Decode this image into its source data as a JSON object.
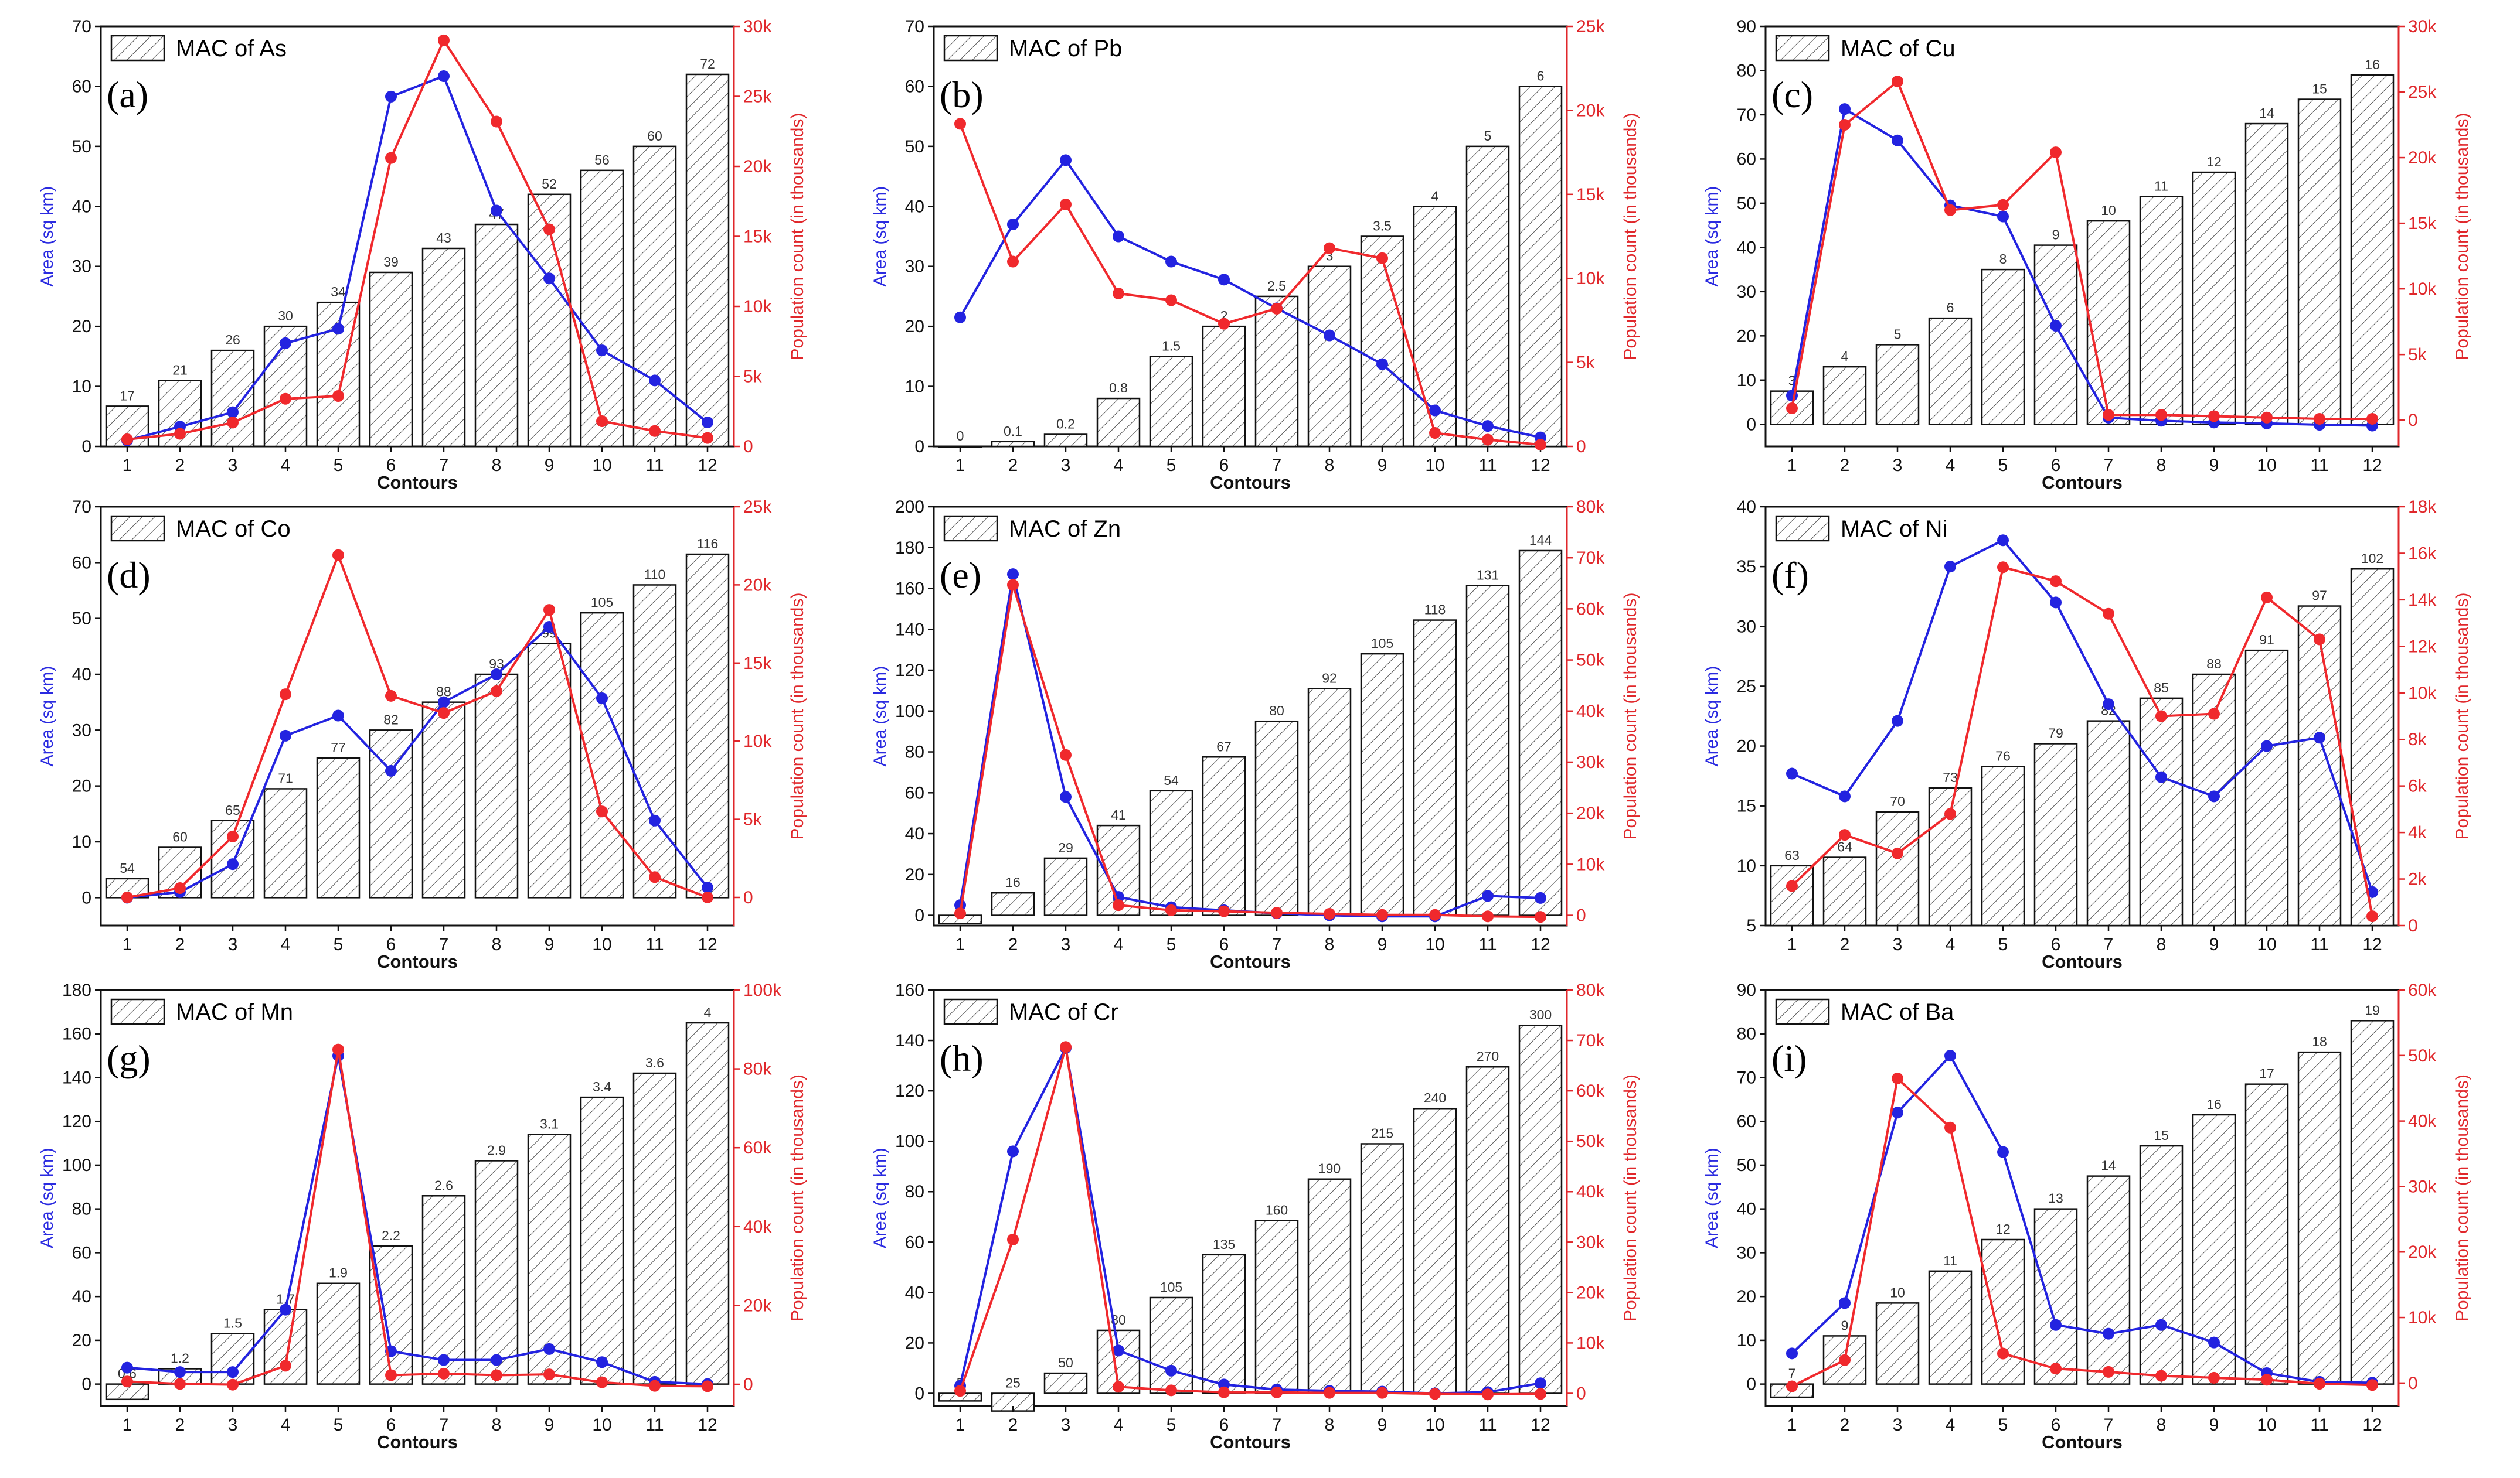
{
  "chart_data": [
    {
      "type": "bar+line",
      "panel_label": "(a)",
      "legend": "MAC of As",
      "xlabel": "Contours",
      "ylabel_left": "Area (sq km)",
      "ylabel_right": "Population count (in thousands)",
      "categories": [
        "1",
        "2",
        "3",
        "4",
        "5",
        "6",
        "7",
        "8",
        "9",
        "10",
        "11",
        "12"
      ],
      "left_axis": {
        "min": 0,
        "max": 70,
        "ticks": [
          "0",
          "10",
          "20",
          "30",
          "40",
          "50",
          "60",
          "70"
        ]
      },
      "right_axis": {
        "min": 0,
        "max": 30,
        "ticks": [
          "0",
          "5k",
          "10k",
          "15k",
          "20k",
          "25k",
          "30k"
        ]
      },
      "bar_values": [
        6.7,
        11,
        16,
        20,
        24,
        29,
        33,
        37,
        42,
        46,
        50,
        62
      ],
      "bar_labels": [
        "17",
        "21",
        "26",
        "30",
        "34",
        "39",
        "43",
        "47",
        "52",
        "56",
        "60",
        "72"
      ],
      "series": [
        {
          "name": "Area",
          "color": "#2323e0",
          "axis": "left",
          "values": [
            1,
            3.3,
            5.7,
            17.2,
            19.6,
            58.3,
            61.7,
            39.3,
            28,
            16,
            11,
            4
          ]
        },
        {
          "name": "Population",
          "color": "#f0292d",
          "axis": "right",
          "values": [
            0.5,
            0.9,
            1.7,
            3.4,
            3.6,
            20.6,
            29,
            23.2,
            15.5,
            1.8,
            1.1,
            0.6
          ]
        }
      ]
    },
    {
      "type": "bar+line",
      "panel_label": "(b)",
      "legend": "MAC of Pb",
      "xlabel": "Contours",
      "ylabel_left": "Area (sq km)",
      "ylabel_right": "Population count (in thousands)",
      "categories": [
        "1",
        "2",
        "3",
        "4",
        "5",
        "6",
        "7",
        "8",
        "9",
        "10",
        "11",
        "12"
      ],
      "left_axis": {
        "min": 0,
        "max": 70,
        "ticks": [
          "0",
          "10",
          "20",
          "30",
          "40",
          "50",
          "60",
          "70"
        ]
      },
      "right_axis": {
        "min": 0,
        "max": 25,
        "ticks": [
          "0",
          "5k",
          "10k",
          "15k",
          "20k",
          "25k"
        ]
      },
      "bar_values": [
        0,
        0.8,
        2,
        8,
        15,
        20,
        25,
        30,
        35,
        40,
        50,
        60
      ],
      "bar_labels": [
        "0",
        "0.1",
        "0.2",
        "0.8",
        "1.5",
        "2",
        "2.5",
        "3",
        "3.5",
        "4",
        "5",
        "6"
      ],
      "series": [
        {
          "name": "Area",
          "color": "#2323e0",
          "axis": "left",
          "values": [
            21.5,
            37,
            47.7,
            35,
            30.8,
            27.8,
            23,
            18.5,
            13.7,
            6,
            3.4,
            1.5
          ]
        },
        {
          "name": "Population",
          "color": "#f0292d",
          "axis": "right",
          "values": [
            19.2,
            11,
            14.4,
            9.1,
            8.7,
            7.3,
            8.2,
            11.8,
            11.2,
            0.8,
            0.4,
            0.1
          ]
        }
      ]
    },
    {
      "type": "bar+line",
      "panel_label": "(c)",
      "legend": "MAC of Cu",
      "xlabel": "Contours",
      "ylabel_left": "Area (sq km)",
      "ylabel_right": "Population count (in thousands)",
      "categories": [
        "1",
        "2",
        "3",
        "4",
        "5",
        "6",
        "7",
        "8",
        "9",
        "10",
        "11",
        "12"
      ],
      "left_axis": {
        "min": -5,
        "max": 90,
        "ticks": [
          "0",
          "10",
          "20",
          "30",
          "40",
          "50",
          "60",
          "70",
          "80",
          "90"
        ]
      },
      "right_axis": {
        "min": -2,
        "max": 30,
        "ticks": [
          "0",
          "5k",
          "10k",
          "15k",
          "20k",
          "25k",
          "30k"
        ]
      },
      "bar_values": [
        7.5,
        13,
        18,
        24,
        35,
        40.5,
        46,
        51.5,
        57,
        68,
        73.5,
        79
      ],
      "bar_labels": [
        "3",
        "4",
        "5",
        "6",
        "8",
        "9",
        "10",
        "11",
        "12",
        "14",
        "15",
        "16"
      ],
      "series": [
        {
          "name": "Area",
          "color": "#2323e0",
          "axis": "left",
          "values": [
            6.5,
            71.3,
            64.2,
            49.5,
            47,
            22.3,
            1.5,
            0.8,
            0.4,
            0.2,
            -0.1,
            -0.3
          ]
        },
        {
          "name": "Population",
          "color": "#f0292d",
          "axis": "right",
          "values": [
            0.9,
            22.5,
            25.8,
            16,
            16.4,
            20.4,
            0.4,
            0.4,
            0.3,
            0.2,
            0.1,
            0.1
          ]
        }
      ]
    },
    {
      "type": "bar+line",
      "panel_label": "(d)",
      "legend": "MAC of Co",
      "xlabel": "Contours",
      "ylabel_left": "Area (sq km)",
      "ylabel_right": "Population count (in thousands)",
      "categories": [
        "1",
        "2",
        "3",
        "4",
        "5",
        "6",
        "7",
        "8",
        "9",
        "10",
        "11",
        "12"
      ],
      "left_axis": {
        "min": -5,
        "max": 70,
        "ticks": [
          "0",
          "10",
          "20",
          "30",
          "40",
          "50",
          "60",
          "70"
        ]
      },
      "right_axis": {
        "min": -1.8,
        "max": 25,
        "ticks": [
          "0",
          "5k",
          "10k",
          "15k",
          "20k",
          "25k"
        ]
      },
      "bar_values": [
        3.4,
        9,
        13.8,
        19.5,
        25,
        30,
        35,
        40,
        45.5,
        51,
        56,
        61.5
      ],
      "bar_labels": [
        "54",
        "60",
        "65",
        "71",
        "77",
        "82",
        "88",
        "93",
        "99",
        "105",
        "110",
        "116"
      ],
      "series": [
        {
          "name": "Area",
          "color": "#2323e0",
          "axis": "left",
          "values": [
            0,
            1,
            6,
            29,
            32.6,
            22.7,
            35,
            40,
            48.5,
            35.7,
            13.8,
            1.8
          ]
        },
        {
          "name": "Population",
          "color": "#f0292d",
          "axis": "right",
          "values": [
            0,
            0.6,
            3.9,
            13,
            21.9,
            12.9,
            11.8,
            13.2,
            18.4,
            5.5,
            1.3,
            0
          ]
        }
      ]
    },
    {
      "type": "bar+line",
      "panel_label": "(e)",
      "legend": "MAC of Zn",
      "xlabel": "Contours",
      "ylabel_left": "Area (sq km)",
      "ylabel_right": "Population count (in thousands)",
      "categories": [
        "1",
        "2",
        "3",
        "4",
        "5",
        "6",
        "7",
        "8",
        "9",
        "10",
        "11",
        "12"
      ],
      "left_axis": {
        "min": -5,
        "max": 200,
        "ticks": [
          "0",
          "20",
          "40",
          "60",
          "80",
          "100",
          "120",
          "140",
          "160",
          "180",
          "200"
        ]
      },
      "right_axis": {
        "min": -2,
        "max": 80,
        "ticks": [
          "0",
          "10k",
          "20k",
          "30k",
          "40k",
          "50k",
          "60k",
          "70k",
          "80k"
        ]
      },
      "bar_values": [
        -4,
        11,
        28,
        44,
        61,
        77.5,
        95,
        111,
        128,
        144.5,
        161.5,
        178.5
      ],
      "bar_labels": [
        "3",
        "16",
        "29",
        "41",
        "54",
        "67",
        "80",
        "92",
        "105",
        "118",
        "131",
        "144"
      ],
      "series": [
        {
          "name": "Area",
          "color": "#2323e0",
          "axis": "left",
          "values": [
            5,
            167,
            58,
            9,
            4,
            2.5,
            1,
            0,
            -0.5,
            -0.5,
            9.5,
            8.5
          ]
        },
        {
          "name": "Population",
          "color": "#f0292d",
          "axis": "right",
          "values": [
            0.4,
            64.7,
            31.4,
            2,
            1,
            0.8,
            0.5,
            0.3,
            0.1,
            0.1,
            -0.2,
            -0.3
          ]
        }
      ]
    },
    {
      "type": "bar+line",
      "panel_label": "(f)",
      "legend": "MAC of Ni",
      "xlabel": "Contours",
      "ylabel_left": "Area (sq km)",
      "ylabel_right": "Population count (in thousands)",
      "categories": [
        "1",
        "2",
        "3",
        "4",
        "5",
        "6",
        "7",
        "8",
        "9",
        "10",
        "11",
        "12"
      ],
      "left_axis": {
        "min": 5,
        "max": 40,
        "ticks": [
          "5",
          "10",
          "15",
          "20",
          "25",
          "30",
          "35",
          "40"
        ]
      },
      "right_axis": {
        "min": 0,
        "max": 18,
        "ticks": [
          "0",
          "2k",
          "4k",
          "6k",
          "8k",
          "10k",
          "12k",
          "14k",
          "16k",
          "18k"
        ]
      },
      "bar_values": [
        10,
        10.7,
        14.5,
        16.5,
        18.3,
        20.2,
        22.1,
        24,
        26,
        28,
        31.7,
        34.8
      ],
      "bar_labels": [
        "63",
        "64",
        "70",
        "73",
        "76",
        "79",
        "82",
        "85",
        "88",
        "91",
        "97",
        "102"
      ],
      "series": [
        {
          "name": "Area",
          "color": "#2323e0",
          "axis": "left",
          "values": [
            17.7,
            15.8,
            22.1,
            35,
            37.2,
            32,
            23.5,
            17.4,
            15.8,
            20,
            20.7,
            7.8
          ]
        },
        {
          "name": "Population",
          "color": "#f0292d",
          "axis": "right",
          "values": [
            1.7,
            3.9,
            3.1,
            4.8,
            15.4,
            14.8,
            13.4,
            9,
            9.1,
            14.1,
            12.3,
            0.4
          ]
        }
      ]
    },
    {
      "type": "bar+line",
      "panel_label": "(g)",
      "legend": "MAC of Mn",
      "xlabel": "Contours",
      "ylabel_left": "Area (sq km)",
      "ylabel_right": "Population count (in thousands)",
      "categories": [
        "1",
        "2",
        "3",
        "4",
        "5",
        "6",
        "7",
        "8",
        "9",
        "10",
        "11",
        "12"
      ],
      "left_axis": {
        "min": -10,
        "max": 180,
        "ticks": [
          "0",
          "20",
          "40",
          "60",
          "80",
          "100",
          "120",
          "140",
          "160",
          "180"
        ]
      },
      "right_axis": {
        "min": -5.5,
        "max": 100,
        "ticks": [
          "0",
          "20k",
          "40k",
          "60k",
          "80k",
          "100k"
        ]
      },
      "bar_values": [
        -7,
        7,
        23,
        34,
        46,
        63,
        86,
        102,
        114,
        131,
        142,
        165
      ],
      "bar_labels": [
        "0.6",
        "1.2",
        "1.5",
        "1.7",
        "1.9",
        "2.2",
        "2.6",
        "2.9",
        "3.1",
        "3.4",
        "3.6",
        "4"
      ],
      "series": [
        {
          "name": "Area",
          "color": "#2323e0",
          "axis": "left",
          "values": [
            7.5,
            5.5,
            5.5,
            34,
            150,
            15,
            11,
            11,
            16,
            10,
            1,
            0
          ]
        },
        {
          "name": "Population",
          "color": "#f0292d",
          "axis": "right",
          "values": [
            0.7,
            0.1,
            -0.1,
            4.7,
            84.9,
            2.3,
            2.7,
            2.3,
            2.5,
            0.5,
            -0.4,
            -0.5
          ]
        }
      ]
    },
    {
      "type": "bar+line",
      "panel_label": "(h)",
      "legend": "MAC of Cr",
      "xlabel": "Contours",
      "ylabel_left": "Area (sq km)",
      "ylabel_right": "Population count (in thousands)",
      "categories": [
        "1",
        "2",
        "3",
        "4",
        "5",
        "6",
        "7",
        "8",
        "9",
        "10",
        "11",
        "12"
      ],
      "left_axis": {
        "min": -5,
        "max": 160,
        "ticks": [
          "0",
          "20",
          "40",
          "60",
          "80",
          "100",
          "120",
          "140",
          "160"
        ]
      },
      "right_axis": {
        "min": -2.5,
        "max": 80,
        "ticks": [
          "0",
          "10k",
          "20k",
          "30k",
          "40k",
          "50k",
          "60k",
          "70k",
          "80k"
        ]
      },
      "bar_values": [
        -3,
        -7,
        8,
        25,
        38,
        55,
        68.5,
        85,
        99,
        113,
        129.5,
        146
      ],
      "bar_labels": [
        "5",
        "25",
        "50",
        "80",
        "105",
        "135",
        "160",
        "190",
        "215",
        "240",
        "270",
        "300"
      ],
      "series": [
        {
          "name": "Area",
          "color": "#2323e0",
          "axis": "left",
          "values": [
            3,
            96,
            137,
            17,
            9,
            3.5,
            1.5,
            1,
            0.7,
            0,
            0.5,
            4
          ]
        },
        {
          "name": "Population",
          "color": "#f0292d",
          "axis": "right",
          "values": [
            0.5,
            30.5,
            68.7,
            1.3,
            0.6,
            0.2,
            0.2,
            0.1,
            0.1,
            -0.1,
            -0.2,
            -0.1
          ]
        }
      ]
    },
    {
      "type": "bar+line",
      "panel_label": "(i)",
      "legend": "MAC of Ba",
      "xlabel": "Contours",
      "ylabel_left": "Area (sq km)",
      "ylabel_right": "Population count (in thousands)",
      "categories": [
        "1",
        "2",
        "3",
        "4",
        "5",
        "6",
        "7",
        "8",
        "9",
        "10",
        "11",
        "12"
      ],
      "left_axis": {
        "min": -5,
        "max": 90,
        "ticks": [
          "0",
          "10",
          "20",
          "30",
          "40",
          "50",
          "60",
          "70",
          "80",
          "90"
        ]
      },
      "right_axis": {
        "min": -3.5,
        "max": 60,
        "ticks": [
          "0",
          "10k",
          "20k",
          "30k",
          "40k",
          "50k",
          "60k"
        ]
      },
      "bar_values": [
        -3,
        11,
        18.5,
        25.8,
        33,
        40,
        47.5,
        54.4,
        61.5,
        68.5,
        75.8,
        83
      ],
      "bar_labels": [
        "7",
        "9",
        "10",
        "11",
        "12",
        "13",
        "14",
        "15",
        "16",
        "17",
        "18",
        "19"
      ],
      "series": [
        {
          "name": "Area",
          "color": "#2323e0",
          "axis": "left",
          "values": [
            7,
            18.5,
            62,
            75,
            53,
            13.5,
            11.5,
            13.5,
            9.5,
            2.5,
            0.5,
            0.3
          ]
        },
        {
          "name": "Population",
          "color": "#f0292d",
          "axis": "right",
          "values": [
            -0.5,
            3.5,
            46.5,
            39,
            4.5,
            2.2,
            1.7,
            1.1,
            0.8,
            0.5,
            -0.1,
            -0.3
          ]
        }
      ]
    }
  ]
}
